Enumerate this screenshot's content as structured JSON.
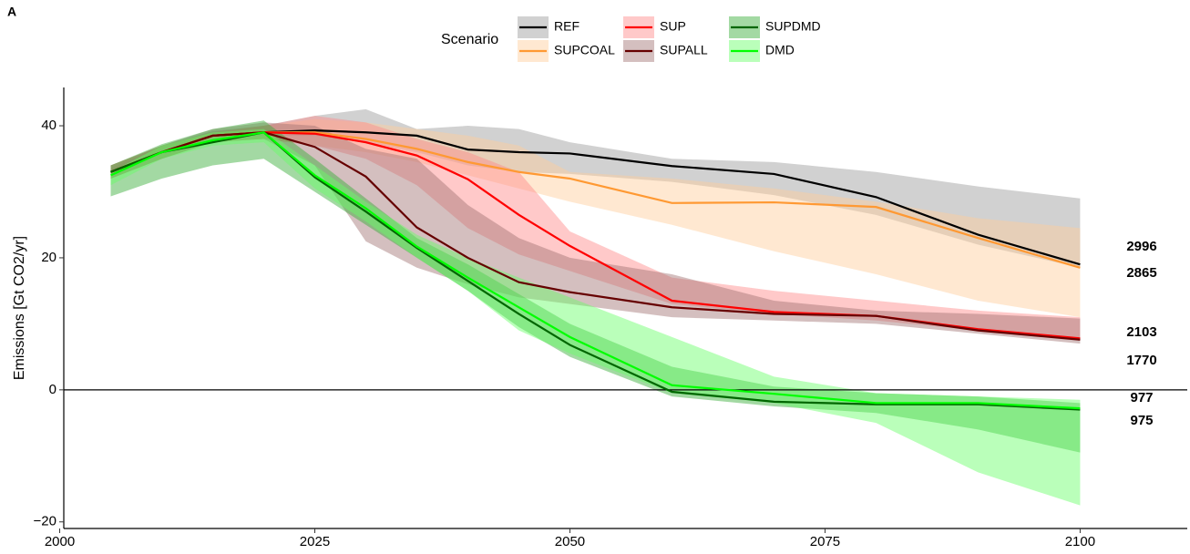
{
  "chart_data": {
    "type": "line",
    "panel_label": "A",
    "y_label": "Emissions [Gt CO2/yr]",
    "legend_title": "Scenario",
    "legend_position": "top",
    "grid": false,
    "x": [
      2005,
      2010,
      2015,
      2020,
      2025,
      2030,
      2035,
      2040,
      2045,
      2050,
      2060,
      2070,
      2080,
      2090,
      2100
    ],
    "xlim": [
      2000.4,
      2110.5
    ],
    "xticks": [
      2000,
      2025,
      2050,
      2075,
      2100
    ],
    "ylim": [
      -21,
      45.8
    ],
    "yticks": [
      {
        "value": -20,
        "label": "−20"
      },
      0,
      20,
      40
    ],
    "hline": 0,
    "series": [
      {
        "name": "REF",
        "color": "#000000",
        "band_color": "#999999",
        "end_label": "2996",
        "end_label_color": "#000000",
        "values": [
          33,
          36,
          38.5,
          39,
          39.3,
          39,
          38.5,
          36.4,
          36,
          35.8,
          33.9,
          32.7,
          29.2,
          23.5,
          19
        ],
        "upper": [
          33.5,
          37,
          39.2,
          40,
          41.5,
          42.5,
          39.5,
          40,
          39.5,
          37.5,
          35,
          34.5,
          33,
          30.8,
          29
        ],
        "lower": [
          32,
          35,
          37.5,
          38.5,
          38.5,
          37.5,
          36,
          34,
          33,
          32.7,
          31.5,
          29.5,
          26.5,
          22,
          18.5
        ]
      },
      {
        "name": "SUPCOAL",
        "color": "#ff9933",
        "band_color": "#ffcc99",
        "end_label": "2865",
        "end_label_color": "#ffa500",
        "values": [
          33,
          36,
          38.5,
          39,
          39,
          38,
          36.5,
          34.5,
          33,
          32,
          28.3,
          28.4,
          27.7,
          23,
          18.5
        ],
        "upper": [
          34,
          37,
          39,
          40,
          41,
          40.5,
          39.5,
          38.5,
          37,
          33,
          32,
          30.5,
          28.5,
          26,
          24.5
        ],
        "lower": [
          32,
          35,
          37.5,
          38,
          37,
          36,
          34.5,
          32.5,
          30.5,
          28.5,
          25,
          21,
          17.5,
          13.5,
          11
        ]
      },
      {
        "name": "SUP",
        "color": "#ff0000",
        "band_color": "#ff8888",
        "end_label": "2103",
        "end_label_color": "#ff0000",
        "values": [
          33,
          36,
          38.5,
          39,
          38.8,
          37.5,
          35.5,
          31.9,
          26.5,
          21.8,
          13.5,
          11.8,
          11.2,
          9.2,
          7.8
        ],
        "upper": [
          34,
          37,
          39,
          40,
          41.5,
          40.5,
          38,
          36,
          33,
          24,
          17,
          15,
          13.5,
          12,
          11
        ],
        "lower": [
          32,
          35,
          37.5,
          38,
          37,
          35,
          31,
          24.5,
          20.5,
          18,
          13,
          11.5,
          10.5,
          9,
          7.5
        ]
      },
      {
        "name": "SUPALL",
        "color": "#660000",
        "band_color": "#a07070",
        "end_label": "1770",
        "end_label_color": "#990000",
        "values": [
          33,
          36,
          38.5,
          39,
          36.8,
          32.3,
          24.6,
          20,
          16.3,
          14.8,
          12.5,
          11.5,
          11.2,
          9,
          7.6
        ],
        "upper": [
          34,
          37,
          39.5,
          40.5,
          40,
          36.5,
          35,
          28,
          23,
          20,
          17.5,
          13.5,
          12,
          11.5,
          10.8
        ],
        "lower": [
          32,
          35,
          37.5,
          38,
          34,
          22.5,
          18.5,
          16,
          14,
          13,
          11,
          10.5,
          10,
          8.5,
          7
        ]
      },
      {
        "name": "SUPDMD",
        "color": "#006600",
        "band_color": "#33aa33",
        "end_label": "975",
        "end_label_color": "#228b22",
        "values": [
          33,
          36,
          37.5,
          39,
          32.2,
          27,
          21.5,
          16.5,
          11.5,
          6.8,
          -0.3,
          -1.8,
          -2.2,
          -2.2,
          -3
        ],
        "upper": [
          34,
          37.2,
          39.5,
          40.8,
          35,
          29,
          23,
          19,
          14.5,
          10,
          3.5,
          0.5,
          -0.5,
          -1,
          -2
        ],
        "lower": [
          29.3,
          32,
          34,
          35,
          30,
          25,
          20,
          15,
          9.5,
          5,
          -1,
          -2.5,
          -3.5,
          -6,
          -9.5
        ]
      },
      {
        "name": "DMD",
        "color": "#00ff00",
        "band_color": "#66ff66",
        "end_label": "977",
        "end_label_color": "#22ee22",
        "values": [
          32.5,
          36,
          37.8,
          39,
          32.5,
          27.5,
          21.7,
          17,
          12.5,
          8,
          0.7,
          -0.6,
          -2,
          -2,
          -2.8
        ],
        "upper": [
          33,
          37,
          39,
          39.5,
          34,
          28.5,
          23.5,
          20,
          17,
          14,
          8,
          2,
          -0.5,
          -1,
          -1.5
        ],
        "lower": [
          31,
          35,
          37,
          37.5,
          30.5,
          25.5,
          20,
          15,
          9,
          5.5,
          -0.5,
          -2,
          -5,
          -12.5,
          -17.5
        ]
      }
    ]
  }
}
